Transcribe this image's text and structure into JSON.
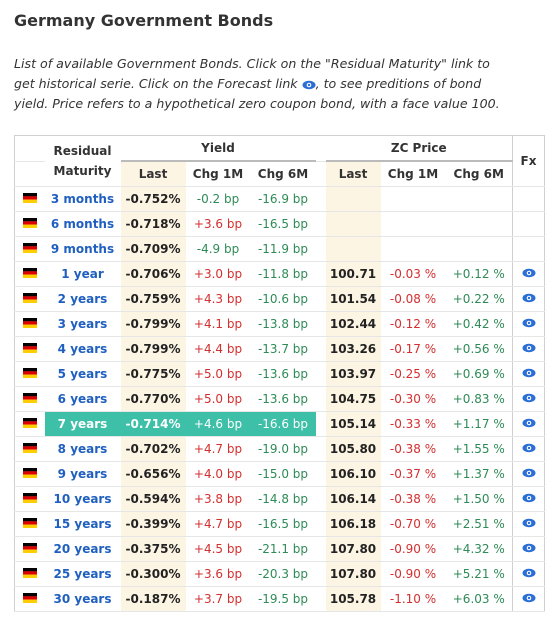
{
  "header": {
    "title": "Germany Government Bonds",
    "description_before_icon": "List of available Government Bonds. Click on the \"Residual Maturity\" link to get historical serie. Click on the Forecast link",
    "description_after_icon": ", to see preditions of bond yield. Price refers to a hypothetical zero coupon bond, with a face value 100."
  },
  "table": {
    "columns": {
      "maturity": "Residual Maturity",
      "yield": "Yield",
      "price": "ZC Price",
      "fx": "Fx",
      "sub": [
        "Last",
        "Chg 1M",
        "Chg 6M",
        "Last",
        "Chg 1M",
        "Chg 6M"
      ]
    },
    "highlighted_row": 9,
    "rows": [
      {
        "maturity": "3 months",
        "yield": [
          "-0.752%",
          "-0.2 bp",
          "-16.9 bp"
        ]
      },
      {
        "maturity": "6 months",
        "yield": [
          "-0.718%",
          "+3.6 bp",
          "-16.5 bp"
        ]
      },
      {
        "maturity": "9 months",
        "yield": [
          "-0.709%",
          "-4.9 bp",
          "-11.9 bp"
        ]
      },
      {
        "maturity": "1 year",
        "yield": [
          "-0.706%",
          "+3.0 bp",
          "-11.8 bp"
        ],
        "price": [
          "100.71",
          "-0.03 %",
          "+0.12 %"
        ]
      },
      {
        "maturity": "2 years",
        "yield": [
          "-0.759%",
          "+4.3 bp",
          "-10.6 bp"
        ],
        "price": [
          "101.54",
          "-0.08 %",
          "+0.22 %"
        ]
      },
      {
        "maturity": "3 years",
        "yield": [
          "-0.799%",
          "+4.1 bp",
          "-13.8 bp"
        ],
        "price": [
          "102.44",
          "-0.12 %",
          "+0.42 %"
        ]
      },
      {
        "maturity": "4 years",
        "yield": [
          "-0.799%",
          "+4.4 bp",
          "-13.7 bp"
        ],
        "price": [
          "103.26",
          "-0.17 %",
          "+0.56 %"
        ]
      },
      {
        "maturity": "5 years",
        "yield": [
          "-0.775%",
          "+5.0 bp",
          "-13.6 bp"
        ],
        "price": [
          "103.97",
          "-0.25 %",
          "+0.69 %"
        ]
      },
      {
        "maturity": "6 years",
        "yield": [
          "-0.770%",
          "+5.0 bp",
          "-13.6 bp"
        ],
        "price": [
          "104.75",
          "-0.30 %",
          "+0.83 %"
        ]
      },
      {
        "maturity": "7 years",
        "yield": [
          "-0.714%",
          "+4.6 bp",
          "-16.6 bp"
        ],
        "price": [
          "105.14",
          "-0.33 %",
          "+1.17 %"
        ]
      },
      {
        "maturity": "8 years",
        "yield": [
          "-0.702%",
          "+4.7 bp",
          "-19.0 bp"
        ],
        "price": [
          "105.80",
          "-0.38 %",
          "+1.55 %"
        ]
      },
      {
        "maturity": "9 years",
        "yield": [
          "-0.656%",
          "+4.0 bp",
          "-15.0 bp"
        ],
        "price": [
          "106.10",
          "-0.37 %",
          "+1.37 %"
        ]
      },
      {
        "maturity": "10 years",
        "yield": [
          "-0.594%",
          "+3.8 bp",
          "-14.8 bp"
        ],
        "price": [
          "106.14",
          "-0.38 %",
          "+1.50 %"
        ]
      },
      {
        "maturity": "15 years",
        "yield": [
          "-0.399%",
          "+4.7 bp",
          "-16.5 bp"
        ],
        "price": [
          "106.18",
          "-0.70 %",
          "+2.51 %"
        ]
      },
      {
        "maturity": "20 years",
        "yield": [
          "-0.375%",
          "+4.5 bp",
          "-21.1 bp"
        ],
        "price": [
          "107.80",
          "-0.90 %",
          "+4.32 %"
        ]
      },
      {
        "maturity": "25 years",
        "yield": [
          "-0.300%",
          "+3.6 bp",
          "-20.3 bp"
        ],
        "price": [
          "107.80",
          "-0.90 %",
          "+5.21 %"
        ]
      },
      {
        "maturity": "30 years",
        "yield": [
          "-0.187%",
          "+3.7 bp",
          "-19.5 bp"
        ],
        "price": [
          "105.78",
          "-1.10 %",
          "+6.03 %"
        ]
      }
    ]
  }
}
